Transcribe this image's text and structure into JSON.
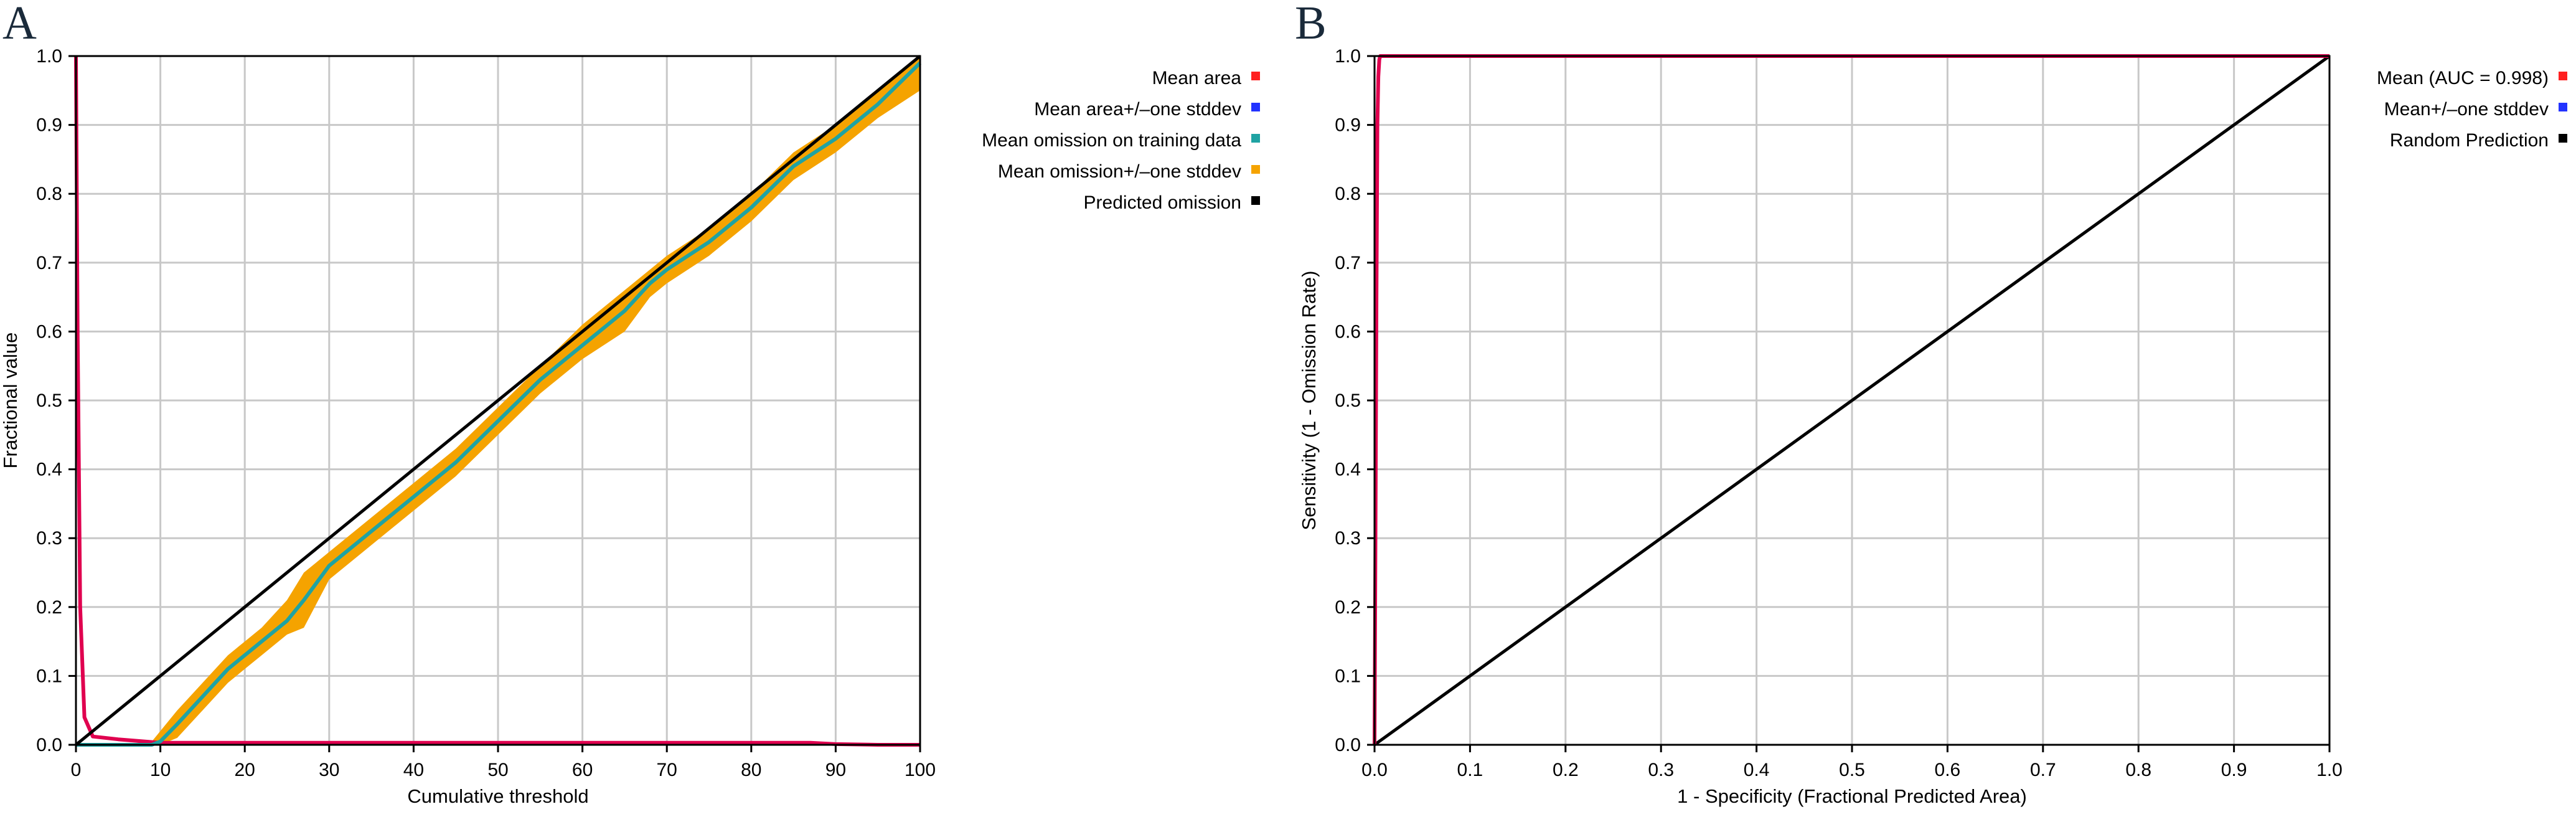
{
  "chart_data": [
    {
      "panel_label": "A",
      "type": "line",
      "xlabel": "Cumulative threshold",
      "ylabel": "Fractional value",
      "xlim": [
        0,
        100
      ],
      "ylim": [
        0,
        1
      ],
      "xticks": [
        0,
        10,
        20,
        30,
        40,
        50,
        60,
        70,
        80,
        90,
        100
      ],
      "yticks": [
        0.0,
        0.1,
        0.2,
        0.3,
        0.4,
        0.5,
        0.6,
        0.7,
        0.8,
        0.9,
        1.0
      ],
      "grid": true,
      "legend_position": "right-top",
      "colors": {
        "mean_area": "#e0004f",
        "mean_area_legend": "#ff2020",
        "area_stddev": "#2233ff",
        "omission": "#1fa3a3",
        "omission_stddev": "#f5a300",
        "predicted": "#000000"
      },
      "series": [
        {
          "name": "Mean area",
          "role": "mean_area",
          "x": [
            0,
            0.2,
            0.5,
            1,
            2,
            5,
            9,
            10,
            20,
            40,
            60,
            80,
            87,
            90,
            95,
            100
          ],
          "y": [
            1.0,
            0.6,
            0.2,
            0.04,
            0.012,
            0.008,
            0.004,
            0.003,
            0.003,
            0.003,
            0.003,
            0.003,
            0.003,
            0.001,
            0.0,
            0.0
          ]
        },
        {
          "name": "Mean area+/–one stddev",
          "role": "area_stddev",
          "x": [],
          "y": []
        },
        {
          "name": "Mean omission on training data",
          "role": "omission",
          "x": [
            0,
            5,
            9,
            10,
            12,
            15,
            18,
            20,
            22,
            25,
            27,
            30,
            35,
            40,
            45,
            50,
            55,
            60,
            65,
            68,
            70,
            75,
            80,
            85,
            90,
            95,
            100
          ],
          "y": [
            0,
            0,
            0,
            0.005,
            0.03,
            0.07,
            0.11,
            0.13,
            0.15,
            0.18,
            0.21,
            0.26,
            0.31,
            0.36,
            0.41,
            0.47,
            0.53,
            0.58,
            0.63,
            0.67,
            0.69,
            0.73,
            0.78,
            0.84,
            0.88,
            0.93,
            0.99
          ]
        },
        {
          "name": "Mean omission+/–one stddev",
          "role": "omission_stddev",
          "x": [
            0,
            5,
            9,
            10,
            12,
            15,
            18,
            20,
            22,
            25,
            27,
            30,
            35,
            40,
            45,
            50,
            55,
            60,
            65,
            68,
            70,
            75,
            80,
            85,
            90,
            95,
            100
          ],
          "y_lower": [
            0,
            0,
            0,
            0,
            0.01,
            0.05,
            0.09,
            0.11,
            0.13,
            0.16,
            0.17,
            0.24,
            0.29,
            0.34,
            0.39,
            0.45,
            0.51,
            0.56,
            0.6,
            0.65,
            0.67,
            0.71,
            0.76,
            0.82,
            0.86,
            0.91,
            0.95
          ],
          "y_upper": [
            0,
            0,
            0.005,
            0.02,
            0.05,
            0.09,
            0.13,
            0.15,
            0.17,
            0.21,
            0.25,
            0.28,
            0.33,
            0.38,
            0.43,
            0.49,
            0.55,
            0.61,
            0.66,
            0.69,
            0.71,
            0.75,
            0.8,
            0.86,
            0.9,
            0.95,
            1.0
          ]
        },
        {
          "name": "Predicted omission",
          "role": "predicted",
          "x": [
            0,
            100
          ],
          "y": [
            0,
            1
          ]
        }
      ]
    },
    {
      "panel_label": "B",
      "type": "line",
      "xlabel": "1 - Specificity (Fractional Predicted Area)",
      "ylabel": "Sensitivity (1 - Omission Rate)",
      "xlim": [
        0,
        1
      ],
      "ylim": [
        0,
        1
      ],
      "xticks": [
        0.0,
        0.1,
        0.2,
        0.3,
        0.4,
        0.5,
        0.6,
        0.7,
        0.8,
        0.9,
        1.0
      ],
      "yticks": [
        0.0,
        0.1,
        0.2,
        0.3,
        0.4,
        0.5,
        0.6,
        0.7,
        0.8,
        0.9,
        1.0
      ],
      "grid": true,
      "legend_position": "right-top",
      "colors": {
        "mean": "#e0004f",
        "mean_legend": "#ff2020",
        "stddev": "#2233ff",
        "random": "#000000"
      },
      "series": [
        {
          "name": "Mean (AUC = 0.998)",
          "role": "mean",
          "x": [
            0,
            0.001,
            0.002,
            0.003,
            0.004,
            0.005,
            0.006,
            0.5,
            1.0
          ],
          "y": [
            0,
            0.3,
            0.65,
            0.9,
            0.97,
            0.995,
            1.0,
            1.0,
            1.0
          ]
        },
        {
          "name": "Mean+/–one stddev",
          "role": "stddev",
          "x": [],
          "y": []
        },
        {
          "name": "Random Prediction",
          "role": "random",
          "x": [
            0,
            1
          ],
          "y": [
            0,
            1
          ]
        }
      ]
    }
  ]
}
